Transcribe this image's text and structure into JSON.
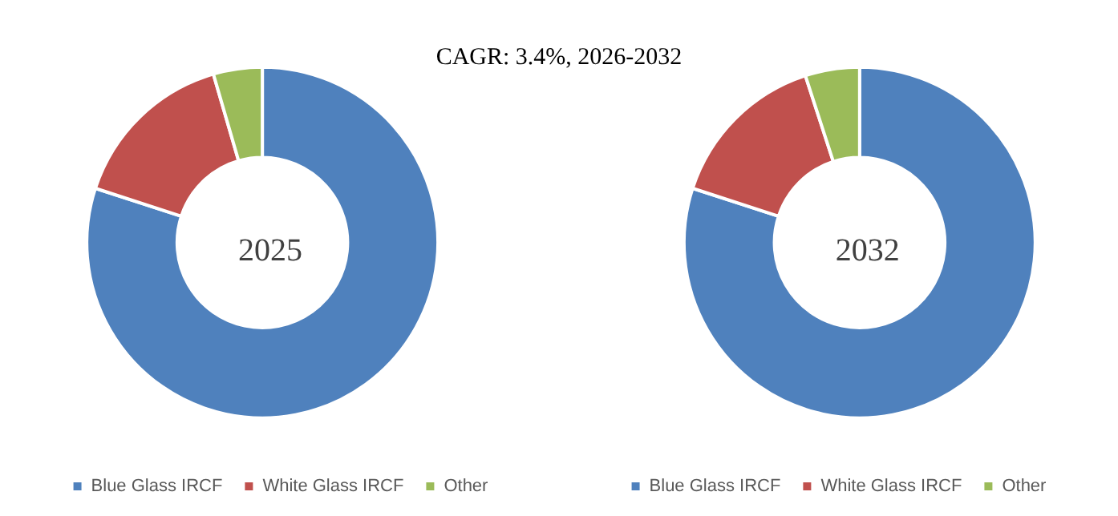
{
  "chart_data": [
    {
      "type": "donut",
      "title": "2025",
      "annotations": [
        "CAGR:  3.4%, 2026-2032"
      ],
      "categories": [
        "Blue Glass IRCF",
        "White Glass IRCF",
        "Other"
      ],
      "values": [
        80,
        15.5,
        4.5
      ],
      "colors": [
        "#4f81bd",
        "#c0504d",
        "#9bbb59"
      ],
      "legend": "bottom"
    },
    {
      "type": "donut",
      "title": "2032",
      "categories": [
        "Blue Glass IRCF",
        "White Glass IRCF",
        "Other"
      ],
      "values": [
        80,
        15,
        5
      ],
      "colors": [
        "#4f81bd",
        "#c0504d",
        "#9bbb59"
      ],
      "legend": "bottom"
    }
  ]
}
